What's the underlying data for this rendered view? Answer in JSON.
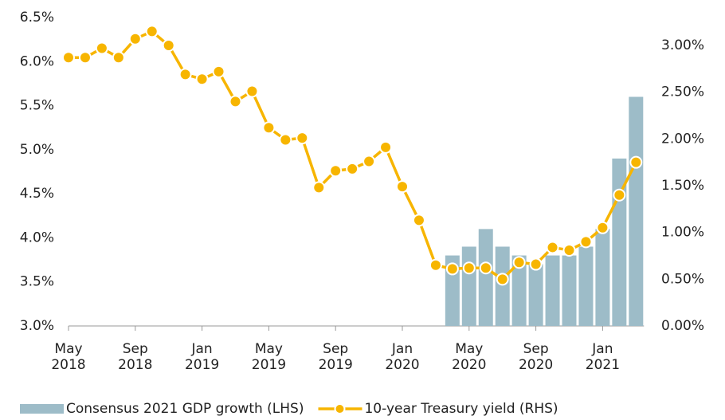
{
  "chart_data": {
    "type": "combo",
    "categories": [
      "May 2018",
      null,
      null,
      null,
      "Sep 2018",
      null,
      null,
      null,
      "Jan 2019",
      null,
      null,
      null,
      "May 2019",
      null,
      null,
      null,
      "Sep 2019",
      null,
      null,
      null,
      "Jan 2020",
      null,
      null,
      null,
      "May 2020",
      null,
      null,
      null,
      "Sep 2020",
      null,
      null,
      null,
      "Jan 2021",
      null,
      null
    ],
    "series": [
      {
        "name": "Consensus 2021 GDP growth (LHS)",
        "type": "bar",
        "color": "#9dbcc8",
        "axis": "y",
        "values": [
          null,
          null,
          null,
          null,
          null,
          null,
          null,
          null,
          null,
          null,
          null,
          null,
          null,
          null,
          null,
          null,
          null,
          null,
          null,
          null,
          null,
          null,
          null,
          3.8,
          3.9,
          4.1,
          3.9,
          3.8,
          3.7,
          3.8,
          3.8,
          3.9,
          4.1,
          4.9,
          5.6
        ]
      },
      {
        "name": "10-year Treasury yield (RHS)",
        "type": "line",
        "color": "#f7b500",
        "axis": "y2",
        "values": [
          2.87,
          2.87,
          2.97,
          2.87,
          3.07,
          3.15,
          3.0,
          2.69,
          2.64,
          2.72,
          2.4,
          2.51,
          2.12,
          1.99,
          2.01,
          1.48,
          1.66,
          1.68,
          1.76,
          1.91,
          1.49,
          1.13,
          0.65,
          0.61,
          0.62,
          0.62,
          0.5,
          0.68,
          0.66,
          0.84,
          0.81,
          0.9,
          1.05,
          1.4,
          1.75
        ]
      }
    ],
    "ylim": [
      3.0,
      6.5
    ],
    "yticks": [
      {
        "value": 3.0,
        "label": "3.0%"
      },
      {
        "value": 3.5,
        "label": "3.5%"
      },
      {
        "value": 4.0,
        "label": "4.0%"
      },
      {
        "value": 4.5,
        "label": "4.5%"
      },
      {
        "value": 5.0,
        "label": "5.0%"
      },
      {
        "value": 5.5,
        "label": "5.5%"
      },
      {
        "value": 6.0,
        "label": "6.0%"
      },
      {
        "value": 6.5,
        "label": "6.5%"
      }
    ],
    "y2lim": [
      0,
      3.0
    ],
    "y2ticks": [
      {
        "value": 0,
        "label": "0.00%"
      },
      {
        "value": 0.5,
        "label": "0.50%"
      },
      {
        "value": 1.0,
        "label": "1.00%"
      },
      {
        "value": 1.5,
        "label": "1.50%"
      },
      {
        "value": 2.0,
        "label": "2.00%"
      },
      {
        "value": 2.5,
        "label": "2.50%"
      },
      {
        "value": 3.0,
        "label": "3.00%"
      }
    ],
    "legend": "bottom",
    "grid": false
  }
}
